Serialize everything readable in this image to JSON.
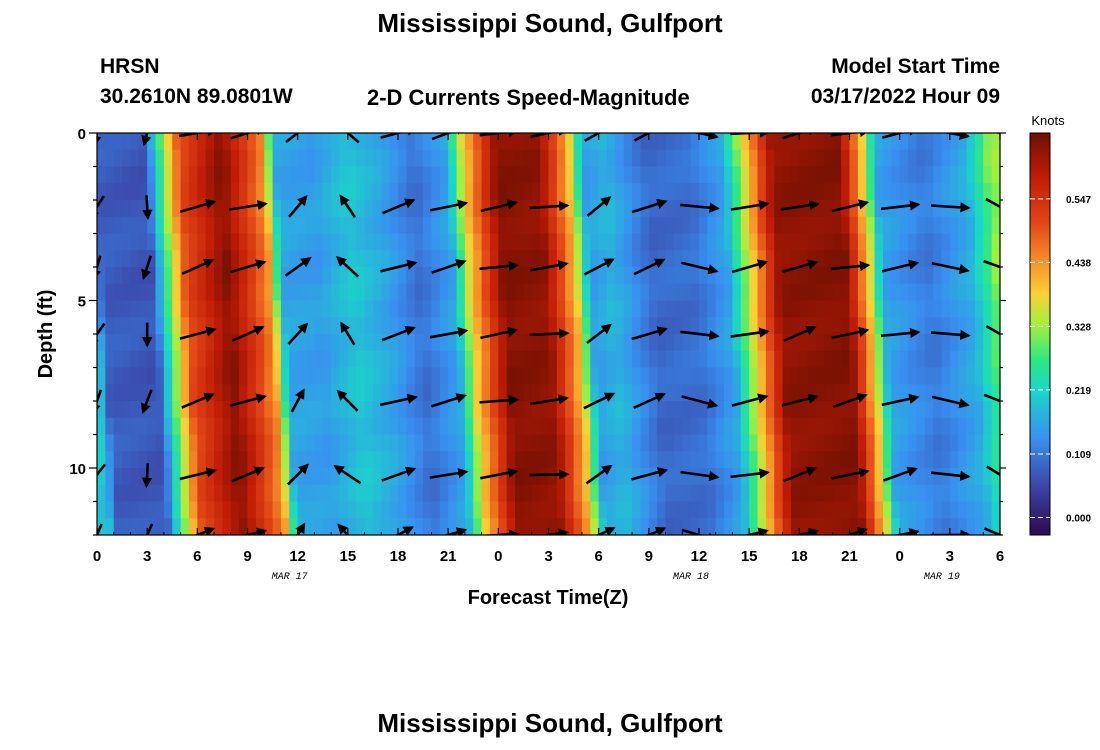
{
  "page_title": "Mississippi Sound, Gulfport",
  "bottom_title": "Mississippi Sound, Gulfport",
  "station": {
    "code": "HRSN",
    "coords": "30.2610N  89.0801W"
  },
  "subtitle": "2-D Currents Speed-Magnitude",
  "model_start": {
    "label": "Model Start Time",
    "value": "03/17/2022 Hour 09"
  },
  "chart_data": {
    "type": "heatmap",
    "title": "Mississippi Sound, Gulfport",
    "subtitle": "2-D Currents Speed-Magnitude",
    "xlabel": "Forecast Time(Z)",
    "ylabel": "Depth (ft)",
    "x_unit": "hours from 0Z Mar 17",
    "xlim": [
      0,
      54
    ],
    "ylim": [
      0,
      12
    ],
    "y_inverted": true,
    "x_ticks": [
      0,
      3,
      6,
      9,
      12,
      15,
      18,
      21,
      24,
      27,
      30,
      33,
      36,
      39,
      42,
      45,
      48,
      51,
      54
    ],
    "x_tick_labels": [
      "0",
      "3",
      "6",
      "9",
      "12",
      "15",
      "18",
      "21",
      "0",
      "3",
      "6",
      "9",
      "12",
      "15",
      "18",
      "21",
      "0",
      "3",
      "6"
    ],
    "y_ticks": [
      0,
      5,
      10
    ],
    "y_tick_labels": [
      "0",
      "5",
      "10"
    ],
    "date_labels": [
      {
        "x": 12,
        "text": "MAR 17"
      },
      {
        "x": 36,
        "text": "MAR 18"
      },
      {
        "x": 51,
        "text": "MAR 19"
      }
    ],
    "colorbar": {
      "title": "Knots",
      "min": -0.03,
      "max": 0.66,
      "ticks": [
        0.0,
        0.109,
        0.219,
        0.328,
        0.438,
        0.547
      ],
      "tick_labels": [
        "0.000",
        "0.109",
        "0.219",
        "0.328",
        "0.438",
        "0.547"
      ]
    },
    "speed_by_time": [
      {
        "t": 0,
        "speed": 0.2
      },
      {
        "t": 0.5,
        "speed": 0.08
      },
      {
        "t": 3.5,
        "speed": 0.07
      },
      {
        "t": 4.5,
        "speed": 0.3
      },
      {
        "t": 5.5,
        "speed": 0.5
      },
      {
        "t": 8,
        "speed": 0.64
      },
      {
        "t": 10.5,
        "speed": 0.44
      },
      {
        "t": 11.3,
        "speed": 0.16
      },
      {
        "t": 13.5,
        "speed": 0.15
      },
      {
        "t": 15.5,
        "speed": 0.2
      },
      {
        "t": 17.5,
        "speed": 0.16
      },
      {
        "t": 19.5,
        "speed": 0.1
      },
      {
        "t": 21.5,
        "speed": 0.16
      },
      {
        "t": 22.5,
        "speed": 0.38
      },
      {
        "t": 24.5,
        "speed": 0.64
      },
      {
        "t": 27,
        "speed": 0.63
      },
      {
        "t": 28.8,
        "speed": 0.4
      },
      {
        "t": 29.7,
        "speed": 0.15
      },
      {
        "t": 31,
        "speed": 0.18
      },
      {
        "t": 33.5,
        "speed": 0.09
      },
      {
        "t": 36,
        "speed": 0.1
      },
      {
        "t": 38,
        "speed": 0.16
      },
      {
        "t": 39.5,
        "speed": 0.4
      },
      {
        "t": 41,
        "speed": 0.63
      },
      {
        "t": 45,
        "speed": 0.64
      },
      {
        "t": 46.5,
        "speed": 0.36
      },
      {
        "t": 47.2,
        "speed": 0.16
      },
      {
        "t": 50,
        "speed": 0.11
      },
      {
        "t": 52.5,
        "speed": 0.17
      },
      {
        "t": 53.5,
        "speed": 0.26
      },
      {
        "t": 54,
        "speed": 0.32
      }
    ],
    "arrow_depths": [
      0,
      2.2,
      4,
      6,
      8,
      10.2,
      12
    ],
    "arrow_times": [
      0,
      3,
      6,
      9,
      12,
      15,
      18,
      21,
      24,
      27,
      30,
      33,
      36,
      39,
      42,
      45,
      48,
      51,
      54
    ],
    "arrow_direction_deg_by_time": [
      200,
      190,
      65,
      65,
      30,
      330,
      60,
      65,
      75,
      80,
      45,
      60,
      110,
      75,
      65,
      70,
      70,
      100,
      125
    ],
    "speed_max_knots": 0.64
  }
}
